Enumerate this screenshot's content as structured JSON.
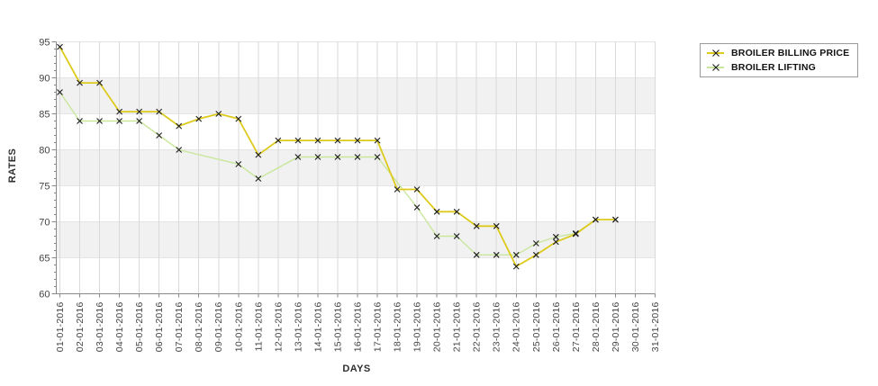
{
  "chart_data": {
    "type": "line",
    "title": "",
    "xlabel": "DAYS",
    "ylabel": "RATES",
    "ylim": [
      60,
      95
    ],
    "ytick_step": 5,
    "grid": true,
    "legend_position": "top-right",
    "categories": [
      "01-01-2016",
      "02-01-2016",
      "03-01-2016",
      "04-01-2016",
      "05-01-2016",
      "06-01-2016",
      "07-01-2016",
      "08-01-2016",
      "09-01-2016",
      "10-01-2016",
      "11-01-2016",
      "12-01-2016",
      "13-01-2016",
      "14-01-2016",
      "15-01-2016",
      "16-01-2016",
      "17-01-2016",
      "18-01-2016",
      "19-01-2016",
      "20-01-2016",
      "21-01-2016",
      "22-01-2016",
      "23-01-2016",
      "24-01-2016",
      "25-01-2016",
      "26-01-2016",
      "27-01-2016",
      "28-01-2016",
      "29-01-2016",
      "30-01-2016",
      "31-01-2016"
    ],
    "series": [
      {
        "name": "BROILER BILLING PRICE",
        "color": "#ddca1d",
        "marker": "x",
        "line_width": 1.8,
        "values": [
          94.3,
          89.3,
          89.3,
          85.3,
          85.3,
          85.3,
          83.3,
          84.3,
          85.0,
          84.3,
          79.3,
          81.3,
          81.3,
          81.3,
          81.3,
          81.3,
          81.3,
          74.5,
          74.5,
          71.4,
          71.4,
          69.4,
          69.4,
          63.8,
          65.4,
          67.2,
          68.3,
          70.3,
          70.3,
          null,
          null
        ]
      },
      {
        "name": "BROILER LIFTING",
        "color": "#c9e79c",
        "marker": "x",
        "line_width": 1.4,
        "values": [
          88.0,
          84.0,
          84.0,
          84.0,
          84.0,
          82.0,
          80.0,
          null,
          null,
          78.0,
          76.0,
          null,
          79.0,
          79.0,
          79.0,
          79.0,
          79.0,
          null,
          72.0,
          68.0,
          68.0,
          65.4,
          65.4,
          65.4,
          67.0,
          67.9,
          68.4,
          70.3,
          70.3,
          null,
          null
        ]
      }
    ],
    "style": {
      "band_fill": "#f1f1f1",
      "grid_vertical": "#d9d9d9",
      "grid_horizontal": "#e4e4e4",
      "axis": "#8a8a8a",
      "tick": "#8a8a8a",
      "marker_color": "#1b1b1b",
      "tick_label_color": "#444444",
      "background": "#ffffff"
    }
  }
}
